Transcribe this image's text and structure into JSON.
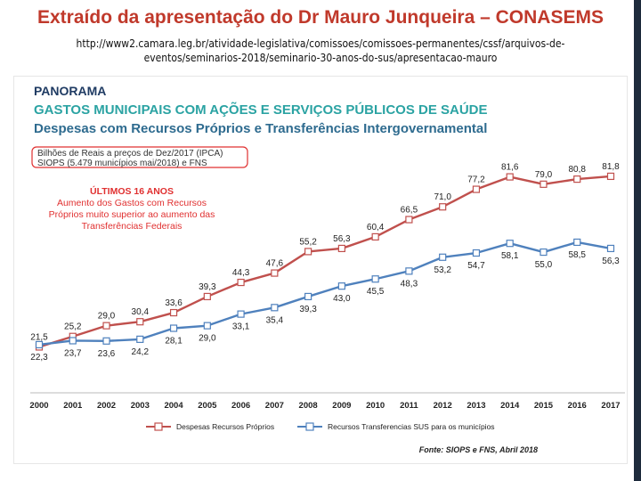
{
  "slide": {
    "title": "Extraído da apresentação do Dr Mauro Junqueira – CONASEMS",
    "url_line1": "http://www2.camara.leg.br/atividade-legislativa/comissoes/comissoes-permanentes/cssf/arquivos-de-",
    "url_line2": "eventos/seminarios-2018/seminario-30-anos-do-sus/apresentacao-mauro"
  },
  "panel": {
    "heading1": "PANORAMA",
    "heading2": "GASTOS MUNICIPAIS COM AÇÕES E SERVIÇOS PÚBLICOS DE SAÚDE",
    "heading3": "Despesas com Recursos Próprios e Transferências Intergovernamental",
    "note_line1": "Bilhões de Reais a preços de Dez/2017 (IPCA)",
    "note_line2": "SIOPS (5.479 municípios mai/2018) e FNS",
    "highlight_title": "ÚLTIMOS 16 ANOS",
    "highlight_line1": "Aumento dos Gastos com Recursos",
    "highlight_line2": "Próprios muito superior ao aumento das",
    "highlight_line3": "Transferências Federais",
    "source_note": "Fonte: SIOPS e FNS, Abril 2018"
  },
  "chart_data": {
    "type": "line",
    "categories": [
      "2000",
      "2001",
      "2002",
      "2003",
      "2004",
      "2005",
      "2006",
      "2007",
      "2008",
      "2009",
      "2010",
      "2011",
      "2012",
      "2013",
      "2014",
      "2015",
      "2016",
      "2017"
    ],
    "series": [
      {
        "name": "Despesas Recursos Próprios",
        "color": "#c0504d",
        "values": [
          21.5,
          25.2,
          29.0,
          30.4,
          33.6,
          39.3,
          44.3,
          47.6,
          55.2,
          56.3,
          60.4,
          66.5,
          71.0,
          77.2,
          81.6,
          79.0,
          80.8,
          81.8
        ],
        "labels": [
          "21,5",
          "25,2",
          "29,0",
          "30,4",
          "33,6",
          "39,3",
          "44,3",
          "47,6",
          "55,2",
          "56,3",
          "60,4",
          "66,5",
          "71,0",
          "77,2",
          "81,6",
          "79,0",
          "80,8",
          "81,8"
        ]
      },
      {
        "name": "Recursos Transferencias SUS para os municípios",
        "color": "#4f81bd",
        "values": [
          22.3,
          23.7,
          23.6,
          24.2,
          28.1,
          29.0,
          33.1,
          35.4,
          39.3,
          43.0,
          45.5,
          48.3,
          53.2,
          54.7,
          58.1,
          55.0,
          58.5,
          56.3
        ],
        "labels": [
          "22,3",
          "23,7",
          "23,6",
          "24,2",
          "28,1",
          "29,0",
          "33,1",
          "35,4",
          "39,3",
          "43,0",
          "45,5",
          "48,3",
          "53,2",
          "54,7",
          "58,1",
          "55,0",
          "58,5",
          "56,3"
        ]
      }
    ],
    "ylim": [
      10,
      95
    ],
    "grid": false,
    "legend_position": "bottom",
    "title": "Despesas com Recursos Próprios e Transferências Intergovernamental",
    "xlabel": "",
    "ylabel": ""
  }
}
